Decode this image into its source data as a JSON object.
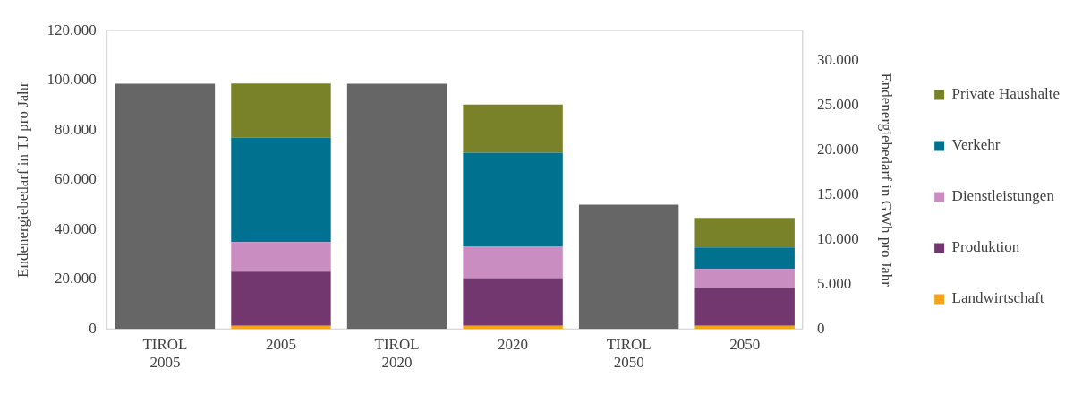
{
  "chart_data": {
    "type": "bar",
    "stacked": true,
    "categories": [
      "TIROL 2005",
      "2005",
      "TIROL 2020",
      "2020",
      "TIROL 2050",
      "2050"
    ],
    "ylabel": "Endenergiebedarf in TJ pro Jahr",
    "y2label": "Endenergiebedarf in GWh pro Jahr",
    "ylim": [
      0,
      120000
    ],
    "yticks": [
      {
        "value": 0,
        "label": "0"
      },
      {
        "value": 20000,
        "label": "20.000"
      },
      {
        "value": 40000,
        "label": "40.000"
      },
      {
        "value": 60000,
        "label": "60.000"
      },
      {
        "value": 80000,
        "label": "80.000"
      },
      {
        "value": 100000,
        "label": "100.000"
      },
      {
        "value": 120000,
        "label": "120.000"
      }
    ],
    "y2lim": [
      0,
      33333
    ],
    "y2ticks": [
      {
        "value": 0,
        "label": "0"
      },
      {
        "value": 5000,
        "label": "5.000"
      },
      {
        "value": 10000,
        "label": "10.000"
      },
      {
        "value": 15000,
        "label": "15.000"
      },
      {
        "value": 20000,
        "label": "20.000"
      },
      {
        "value": 25000,
        "label": "25.000"
      },
      {
        "value": 30000,
        "label": "30.000"
      }
    ],
    "grid": false,
    "legend": "right",
    "series": [
      {
        "color": "#666666",
        "values": [
          98600,
          null,
          98600,
          null,
          50000,
          null
        ]
      },
      {
        "name": "Landwirtschaft",
        "color": "#f5a31a",
        "values": [
          null,
          1250,
          null,
          1250,
          null,
          1250
        ]
      },
      {
        "name": "Produktion",
        "color": "#72376f",
        "values": [
          null,
          21800,
          null,
          19200,
          null,
          15300
        ]
      },
      {
        "name": "Dienstleistungen",
        "color": "#c98dc1",
        "values": [
          null,
          11900,
          null,
          12600,
          null,
          7600
        ]
      },
      {
        "name": "Verkehr",
        "color": "#00718f",
        "values": [
          null,
          42000,
          null,
          37800,
          null,
          8600
        ]
      },
      {
        "name": "Private Haushalte",
        "color": "#7a8229",
        "values": [
          null,
          21800,
          null,
          19400,
          null,
          11900
        ]
      }
    ]
  }
}
